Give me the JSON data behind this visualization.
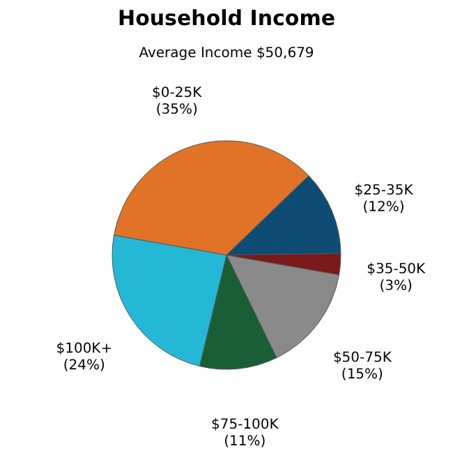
{
  "chart_data": {
    "type": "pie",
    "title": "Household Income",
    "subtitle": "Average Income  $50,679",
    "categories": [
      "$0-25K",
      "$25-35K",
      "$35-50K",
      "$50-75K",
      "$75-100K",
      "$100K+"
    ],
    "values": [
      35,
      12,
      3,
      15,
      11,
      24
    ],
    "value_labels": [
      "(35%)",
      "(12%)",
      "(3%)",
      "(15%)",
      "(11%)",
      "(24%)"
    ],
    "colors": [
      "#e07328",
      "#0f4c73",
      "#7a1a1a",
      "#8a8a8a",
      "#1a5e35",
      "#25b8d6"
    ],
    "legend": false
  }
}
